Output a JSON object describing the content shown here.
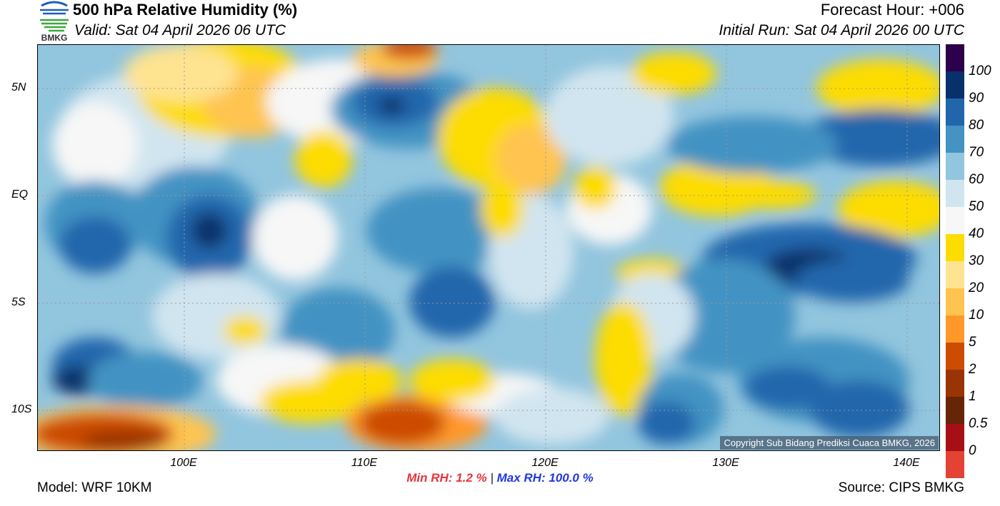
{
  "header": {
    "logo_text": "BMKG",
    "title": "500 hPa Relative Humidity (%)",
    "valid": "Valid: Sat 04 April 2026 06 UTC",
    "forecast_hour": "Forecast Hour: +006",
    "initial_run": "Initial Run: Sat 04 April 2026 00 UTC"
  },
  "map": {
    "lat_labels": [
      "5N",
      "EQ",
      "5S",
      "10S"
    ],
    "lon_labels": [
      "100E",
      "110E",
      "120E",
      "130E",
      "140E"
    ],
    "copyright": "Copyright Sub Bidang Prediksi Cuaca BMKG, 2026"
  },
  "colorbar": {
    "labels": [
      "100",
      "90",
      "80",
      "70",
      "60",
      "50",
      "40",
      "30",
      "20",
      "10",
      "5",
      "2",
      "1",
      "0.5",
      "0"
    ],
    "colors": [
      "#2d004b",
      "#08306b",
      "#2166ac",
      "#4393c3",
      "#92c5de",
      "#d1e5f0",
      "#f7f7f7",
      "#fddc00",
      "#fee391",
      "#fec44f",
      "#fe9929",
      "#cc4c02",
      "#993404",
      "#662506",
      "#a50f15",
      "#e34234"
    ]
  },
  "stats": {
    "min_label": "Min RH:",
    "min_value": "1.2 %",
    "separator": "|",
    "max_label": "Max RH:",
    "max_value": "100.0 %"
  },
  "footer": {
    "model": "Model: WRF 10KM",
    "source": "Source: CIPS BMKG"
  }
}
